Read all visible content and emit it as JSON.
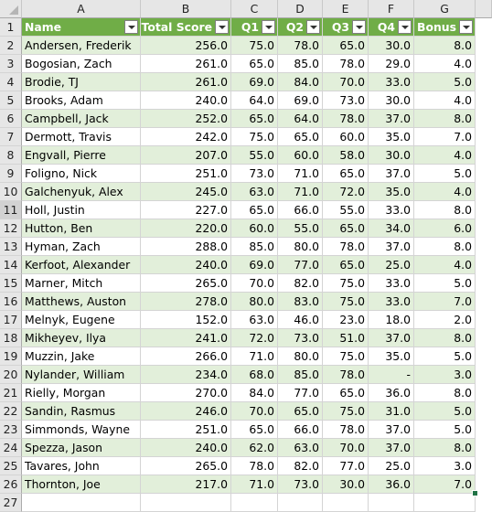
{
  "spreadsheet": {
    "column_letters": [
      "A",
      "B",
      "C",
      "D",
      "E",
      "F",
      "G"
    ],
    "table_headers": [
      "Name",
      "Total Score",
      "Q1",
      "Q2",
      "Q3",
      "Q4",
      "Bonus"
    ],
    "rows": [
      [
        "Andersen, Frederik",
        "256.0",
        "75.0",
        "78.0",
        "65.0",
        "30.0",
        "8.0"
      ],
      [
        "Bogosian, Zach",
        "261.0",
        "65.0",
        "85.0",
        "78.0",
        "29.0",
        "4.0"
      ],
      [
        "Brodie, TJ",
        "261.0",
        "69.0",
        "84.0",
        "70.0",
        "33.0",
        "5.0"
      ],
      [
        "Brooks, Adam",
        "240.0",
        "64.0",
        "69.0",
        "73.0",
        "30.0",
        "4.0"
      ],
      [
        "Campbell, Jack",
        "252.0",
        "65.0",
        "64.0",
        "78.0",
        "37.0",
        "8.0"
      ],
      [
        "Dermott, Travis",
        "242.0",
        "75.0",
        "65.0",
        "60.0",
        "35.0",
        "7.0"
      ],
      [
        "Engvall, Pierre",
        "207.0",
        "55.0",
        "60.0",
        "58.0",
        "30.0",
        "4.0"
      ],
      [
        "Foligno, Nick",
        "251.0",
        "73.0",
        "71.0",
        "65.0",
        "37.0",
        "5.0"
      ],
      [
        "Galchenyuk, Alex",
        "245.0",
        "63.0",
        "71.0",
        "72.0",
        "35.0",
        "4.0"
      ],
      [
        "Holl, Justin",
        "227.0",
        "65.0",
        "66.0",
        "55.0",
        "33.0",
        "8.0"
      ],
      [
        "Hutton, Ben",
        "220.0",
        "60.0",
        "55.0",
        "65.0",
        "34.0",
        "6.0"
      ],
      [
        "Hyman, Zach",
        "288.0",
        "85.0",
        "80.0",
        "78.0",
        "37.0",
        "8.0"
      ],
      [
        "Kerfoot, Alexander",
        "240.0",
        "69.0",
        "77.0",
        "65.0",
        "25.0",
        "4.0"
      ],
      [
        "Marner, Mitch",
        "265.0",
        "70.0",
        "82.0",
        "75.0",
        "33.0",
        "5.0"
      ],
      [
        "Matthews, Auston",
        "278.0",
        "80.0",
        "83.0",
        "75.0",
        "33.0",
        "7.0"
      ],
      [
        "Melnyk, Eugene",
        "152.0",
        "63.0",
        "46.0",
        "23.0",
        "18.0",
        "2.0"
      ],
      [
        "Mikheyev, Ilya",
        "241.0",
        "72.0",
        "73.0",
        "51.0",
        "37.0",
        "8.0"
      ],
      [
        "Muzzin, Jake",
        "266.0",
        "71.0",
        "80.0",
        "75.0",
        "35.0",
        "5.0"
      ],
      [
        "Nylander, William",
        "234.0",
        "68.0",
        "85.0",
        "78.0",
        "-",
        "3.0"
      ],
      [
        "Rielly, Morgan",
        "270.0",
        "84.0",
        "77.0",
        "65.0",
        "36.0",
        "8.0"
      ],
      [
        "Sandin, Rasmus",
        "246.0",
        "70.0",
        "65.0",
        "75.0",
        "31.0",
        "5.0"
      ],
      [
        "Simmonds, Wayne",
        "251.0",
        "65.0",
        "66.0",
        "78.0",
        "37.0",
        "5.0"
      ],
      [
        "Spezza, Jason",
        "240.0",
        "62.0",
        "63.0",
        "70.0",
        "37.0",
        "8.0"
      ],
      [
        "Tavares, John",
        "265.0",
        "78.0",
        "82.0",
        "77.0",
        "25.0",
        "3.0"
      ],
      [
        "Thornton, Joe",
        "217.0",
        "71.0",
        "73.0",
        "30.0",
        "36.0",
        "7.0"
      ]
    ],
    "selected_row": 11,
    "colors": {
      "header_fill": "#70ad47",
      "band_fill": "#e2efda",
      "grid_line": "#d4d4d4",
      "headings_fill": "#e6e6e6"
    },
    "icons": {
      "filter": "filter-dropdown-icon",
      "corner": "select-all-icon",
      "resize": "table-resize-handle-icon"
    }
  }
}
